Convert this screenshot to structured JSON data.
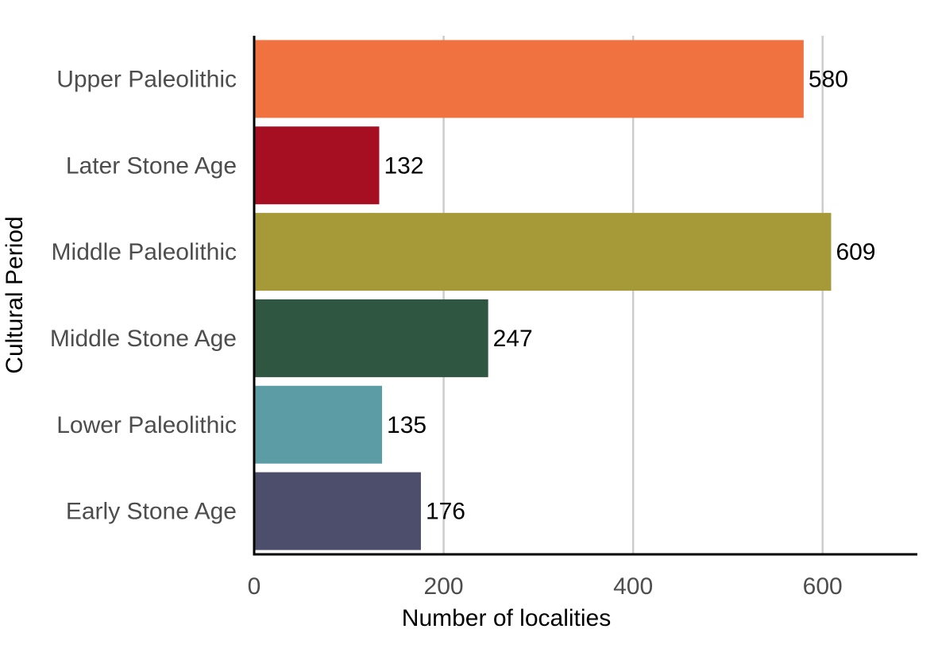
{
  "chart_data": {
    "type": "bar",
    "orientation": "horizontal",
    "title": "",
    "xlabel": "Number of localities",
    "ylabel": "Cultural Period",
    "xlim": [
      0,
      700
    ],
    "x_ticks": [
      0,
      200,
      400,
      600
    ],
    "x_tick_labels": [
      "0",
      "200",
      "400",
      "600"
    ],
    "grid": "vertical major gridlines",
    "legend": "none",
    "categories": [
      "Upper Paleolithic",
      "Later Stone Age",
      "Middle Paleolithic",
      "Middle Stone Age",
      "Lower Paleolithic",
      "Early Stone Age"
    ],
    "values": [
      580,
      132,
      609,
      247,
      135,
      176
    ],
    "data_labels": [
      "580",
      "132",
      "609",
      "247",
      "135",
      "176"
    ],
    "colors": [
      "#ef7240",
      "#a50f21",
      "#a59a37",
      "#2f5641",
      "#5c9ca5",
      "#4d4e6b"
    ]
  }
}
